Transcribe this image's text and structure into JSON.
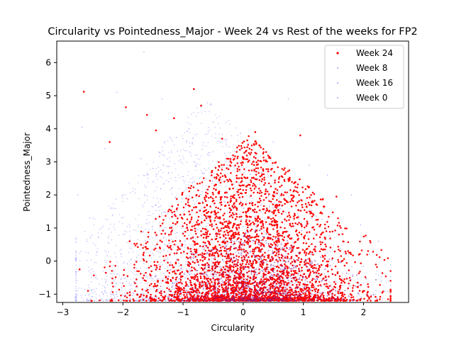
{
  "chart_data": {
    "type": "scatter",
    "title": "Circularity vs Pointedness_Major - Week 24 vs Rest of the weeks for FP2",
    "xlabel": "Circularity",
    "ylabel": "Pointedness_Major",
    "xlim": [
      -3.1,
      2.75
    ],
    "ylim": [
      -1.25,
      6.65
    ],
    "xticks": [
      -3,
      -2,
      -1,
      0,
      1,
      2
    ],
    "yticks": [
      -1,
      0,
      1,
      2,
      3,
      4,
      5,
      6
    ],
    "grid": false,
    "legend_position": "top-right",
    "series": [
      {
        "name": "Week 24",
        "color": "#ff0000",
        "marker": "dot-large"
      },
      {
        "name": "Week 8",
        "color": "#8080ff",
        "marker": "dot-small"
      },
      {
        "name": "Week 16",
        "color": "#8080ff",
        "marker": "dot-small"
      },
      {
        "name": "Week 0",
        "color": "#8080ff",
        "marker": "dot-small"
      }
    ],
    "points": {
      "Week 24": [
        [
          -2.65,
          5.12
        ],
        [
          -1.95,
          4.65
        ],
        [
          -1.6,
          4.42
        ],
        [
          -1.15,
          4.32
        ],
        [
          -0.82,
          5.2
        ],
        [
          -0.7,
          4.7
        ],
        [
          0.95,
          3.8
        ],
        [
          -2.22,
          3.6
        ],
        [
          -1.45,
          3.95
        ],
        [
          -0.35,
          3.7
        ],
        [
          0.2,
          3.9
        ],
        [
          -2.72,
          -0.25
        ],
        [
          -2.58,
          -0.9
        ],
        [
          -2.18,
          -1.2
        ],
        [
          -1.38,
          -1.18
        ],
        [
          0.6,
          -1.18
        ],
        [
          1.9,
          -0.65
        ],
        [
          2.08,
          -0.78
        ],
        [
          2.2,
          -1.08
        ],
        [
          1.55,
          1.95
        ],
        [
          -0.1,
          2.5
        ],
        [
          0.3,
          1.2
        ],
        [
          -0.5,
          0.4
        ],
        [
          0.8,
          -0.3
        ],
        [
          -1.2,
          -0.6
        ],
        [
          0.05,
          -0.9
        ],
        [
          1.2,
          0.3
        ],
        [
          -0.9,
          1.5
        ],
        [
          0.45,
          0.8
        ],
        [
          -0.25,
          -0.5
        ]
      ],
      "Week 8": [
        [
          -1.65,
          6.33
        ],
        [
          -2.68,
          4.05
        ],
        [
          -2.1,
          5.1
        ],
        [
          0.75,
          4.9
        ],
        [
          -2.55,
          1.3
        ],
        [
          2.3,
          -0.6
        ],
        [
          2.45,
          -1.05
        ],
        [
          -2.8,
          -1.1
        ],
        [
          1.8,
          2.0
        ],
        [
          -1.5,
          2.8
        ]
      ],
      "Week 16": [
        [
          -2.3,
          3.4
        ],
        [
          -1.8,
          -0.3
        ],
        [
          2.1,
          0.2
        ],
        [
          -0.9,
          4.0
        ],
        [
          1.4,
          2.6
        ],
        [
          -2.6,
          0.6
        ],
        [
          0.2,
          3.2
        ],
        [
          2.35,
          -0.9
        ],
        [
          -1.2,
          3.7
        ],
        [
          -2.0,
          2.0
        ]
      ],
      "Week 0": [
        [
          -2.75,
          2.0
        ],
        [
          -2.45,
          -0.5
        ],
        [
          1.95,
          1.1
        ],
        [
          -1.35,
          4.9
        ],
        [
          0.5,
          3.6
        ],
        [
          -2.2,
          1.6
        ],
        [
          2.25,
          0.6
        ],
        [
          -0.5,
          4.2
        ],
        [
          1.1,
          2.9
        ],
        [
          -1.7,
          3.1
        ]
      ]
    }
  }
}
